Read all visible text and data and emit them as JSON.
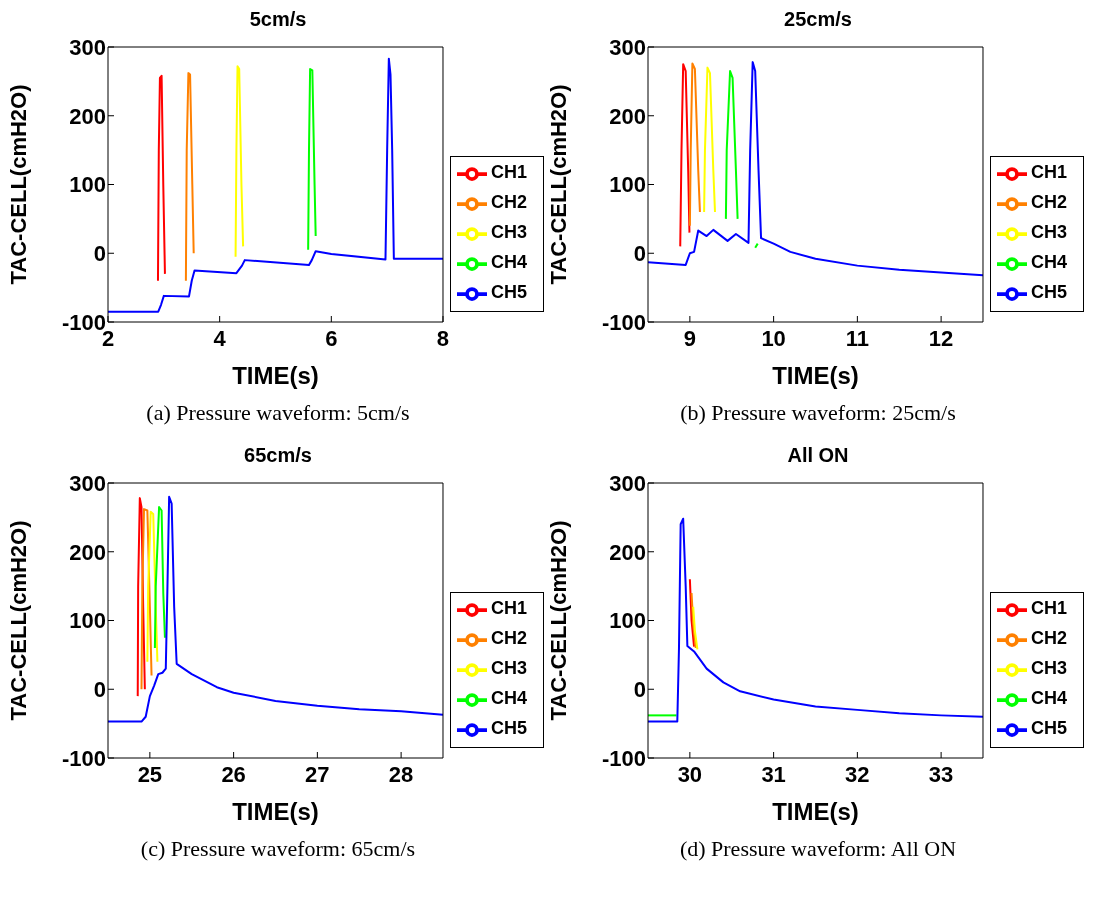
{
  "chart_data": [
    {
      "type": "line",
      "title": "5cm/s",
      "xlabel": "TIME(s)",
      "ylabel": "TAC-CELL(cmH2O)",
      "xlim": [
        2,
        8
      ],
      "xticks": [
        2,
        4,
        6,
        8
      ],
      "ylim": [
        -100,
        300
      ],
      "yticks": [
        -100,
        0,
        100,
        200,
        300
      ],
      "legend": "bottom right",
      "marker": "none",
      "line_style": "solid",
      "annotations": [
        "(a) Pressure waveform: 5cm/s"
      ],
      "series": [
        {
          "name": "CH1",
          "color": "#ff0000",
          "x": [
            2.895,
            2.91,
            2.93,
            2.96,
            2.99,
            3.02
          ],
          "values": [
            -40,
            150,
            255,
            258,
            100,
            -30
          ]
        },
        {
          "name": "CH2",
          "color": "#ff8000",
          "x": [
            3.395,
            3.41,
            3.44,
            3.47,
            3.51,
            3.535
          ],
          "values": [
            -40,
            150,
            262,
            260,
            100,
            0
          ]
        },
        {
          "name": "CH3",
          "color": "#ffff00",
          "x": [
            4.285,
            4.3,
            4.32,
            4.35,
            4.39,
            4.42
          ],
          "values": [
            -5,
            150,
            272,
            268,
            100,
            10
          ]
        },
        {
          "name": "CH4",
          "color": "#00ff00",
          "x": [
            5.585,
            5.6,
            5.62,
            5.66,
            5.7,
            5.72
          ],
          "values": [
            5,
            150,
            268,
            266,
            100,
            25
          ]
        },
        {
          "name": "CH5",
          "color": "#0000ff",
          "x": [
            2,
            2.9,
            2.95,
            3.0,
            3.45,
            3.5,
            3.55,
            4.3,
            4.4,
            4.45,
            5.6,
            5.65,
            5.72,
            6,
            6.97,
            7.0,
            7.03,
            7.06,
            7.09,
            7.12,
            8
          ],
          "values": [
            -85,
            -85,
            -75,
            -62,
            -63,
            -40,
            -25,
            -29,
            -18,
            -10,
            -17,
            -10,
            3,
            -1,
            -9,
            150,
            283,
            260,
            150,
            -8,
            -8
          ]
        }
      ]
    },
    {
      "type": "line",
      "title": "25cm/s",
      "xlabel": "TIME(s)",
      "ylabel": "TAC-CELL(cmH2O)",
      "xlim": [
        8.5,
        12.5
      ],
      "xticks": [
        9,
        10,
        11,
        12
      ],
      "ylim": [
        -100,
        300
      ],
      "yticks": [
        -100,
        0,
        100,
        200,
        300
      ],
      "legend": "bottom right",
      "marker": "none",
      "line_style": "solid",
      "annotations": [
        "(b) Pressure waveform: 25cm/s"
      ],
      "series": [
        {
          "name": "CH1",
          "color": "#ff0000",
          "x": [
            8.885,
            8.9,
            8.92,
            8.95,
            8.98,
            8.995
          ],
          "values": [
            10,
            150,
            275,
            265,
            120,
            30
          ]
        },
        {
          "name": "CH2",
          "color": "#ff8000",
          "x": [
            9.0,
            9.01,
            9.03,
            9.06,
            9.1,
            9.12
          ],
          "values": [
            40,
            150,
            276,
            268,
            120,
            60
          ]
        },
        {
          "name": "CH3",
          "color": "#ffff00",
          "x": [
            9.17,
            9.18,
            9.21,
            9.24,
            9.28,
            9.3
          ],
          "values": [
            60,
            150,
            270,
            262,
            120,
            60
          ]
        },
        {
          "name": "CH4",
          "color": "#00ff00",
          "x": [
            9.43,
            9.44,
            9.48,
            9.51,
            9.55,
            9.57,
            9.7,
            9.78,
            9.81
          ],
          "values": [
            50,
            150,
            265,
            255,
            120,
            50,
            null,
            8,
            14
          ]
        },
        {
          "name": "CH5",
          "color": "#0000ff",
          "x": [
            8.5,
            8.95,
            9.0,
            9.05,
            9.1,
            9.2,
            9.28,
            9.45,
            9.55,
            9.7,
            9.72,
            9.75,
            9.78,
            9.82,
            9.85,
            10,
            10.2,
            10.5,
            11,
            11.5,
            12,
            12.5
          ],
          "values": [
            -13,
            -17,
            0,
            2,
            33,
            25,
            34,
            18,
            28,
            15,
            150,
            278,
            265,
            120,
            22,
            14,
            2,
            -8,
            -18,
            -24,
            -28,
            -32
          ]
        }
      ]
    },
    {
      "type": "line",
      "title": "65cm/s",
      "xlabel": "TIME(s)",
      "ylabel": "TAC-CELL(cmH2O)",
      "xlim": [
        24.5,
        28.5
      ],
      "xticks": [
        25,
        26,
        27,
        28
      ],
      "ylim": [
        -100,
        300
      ],
      "yticks": [
        -100,
        0,
        100,
        200,
        300
      ],
      "legend": "bottom right",
      "marker": "none",
      "line_style": "solid",
      "annotations": [
        "(c) Pressure waveform: 65cm/s"
      ],
      "series": [
        {
          "name": "CH1",
          "color": "#ff0000",
          "x": [
            24.855,
            24.86,
            24.88,
            24.9,
            24.92,
            24.94
          ],
          "values": [
            -10,
            150,
            278,
            265,
            120,
            0
          ]
        },
        {
          "name": "CH2",
          "color": "#ff8000",
          "x": [
            24.9,
            24.91,
            24.93,
            24.97,
            25.0,
            25.02
          ],
          "values": [
            0,
            150,
            262,
            260,
            120,
            20
          ]
        },
        {
          "name": "CH3",
          "color": "#ffff00",
          "x": [
            24.97,
            24.98,
            25.01,
            25.04,
            25.07,
            25.09
          ],
          "values": [
            40,
            150,
            258,
            255,
            120,
            40
          ]
        },
        {
          "name": "CH4",
          "color": "#00ff00",
          "x": [
            25.06,
            25.07,
            25.11,
            25.14,
            25.16,
            25.18
          ],
          "values": [
            60,
            150,
            265,
            260,
            140,
            75
          ]
        },
        {
          "name": "CH5",
          "color": "#0000ff",
          "x": [
            24.5,
            24.9,
            24.95,
            25.0,
            25.05,
            25.1,
            25.15,
            25.19,
            25.21,
            25.23,
            25.26,
            25.29,
            25.32,
            25.5,
            25.8,
            26,
            26.5,
            27,
            27.5,
            28,
            28.5
          ],
          "values": [
            -47,
            -47,
            -40,
            -10,
            5,
            22,
            24,
            30,
            150,
            280,
            270,
            120,
            37,
            22,
            3,
            -5,
            -17,
            -24,
            -29,
            -32,
            -37
          ]
        }
      ]
    },
    {
      "type": "line",
      "title": "All ON",
      "xlabel": "TIME(s)",
      "ylabel": "TAC-CELL(cmH2O)",
      "xlim": [
        29.5,
        33.5
      ],
      "xticks": [
        30,
        31,
        32,
        33
      ],
      "ylim": [
        -100,
        300
      ],
      "yticks": [
        -100,
        0,
        100,
        200,
        300
      ],
      "legend": "bottom right",
      "marker": "none",
      "line_style": "solid",
      "annotations": [
        "(d) Pressure waveform: All ON"
      ],
      "series": [
        {
          "name": "CH1",
          "color": "#ff0000",
          "x": [
            30.0,
            30.02,
            30.05
          ],
          "values": [
            160,
            100,
            62
          ]
        },
        {
          "name": "CH2",
          "color": "#ff8000",
          "x": [
            30.02,
            30.04,
            30.07
          ],
          "values": [
            140,
            95,
            60
          ]
        },
        {
          "name": "CH3",
          "color": "#ffff00",
          "x": [
            30.04,
            30.06,
            30.09
          ],
          "values": [
            120,
            85,
            58
          ]
        },
        {
          "name": "CH4",
          "color": "#00ff00",
          "x": [
            29.5,
            29.84
          ],
          "values": [
            -38,
            -38
          ]
        },
        {
          "name": "CH5",
          "color": "#0000ff",
          "x": [
            29.5,
            29.85,
            29.87,
            29.89,
            29.92,
            29.95,
            29.97,
            30.05,
            30.2,
            30.4,
            30.6,
            31,
            31.5,
            32,
            32.5,
            33,
            33.5
          ],
          "values": [
            -47,
            -47,
            60,
            240,
            248,
            150,
            63,
            55,
            30,
            10,
            -3,
            -15,
            -25,
            -30,
            -35,
            -38,
            -40
          ]
        }
      ]
    }
  ]
}
